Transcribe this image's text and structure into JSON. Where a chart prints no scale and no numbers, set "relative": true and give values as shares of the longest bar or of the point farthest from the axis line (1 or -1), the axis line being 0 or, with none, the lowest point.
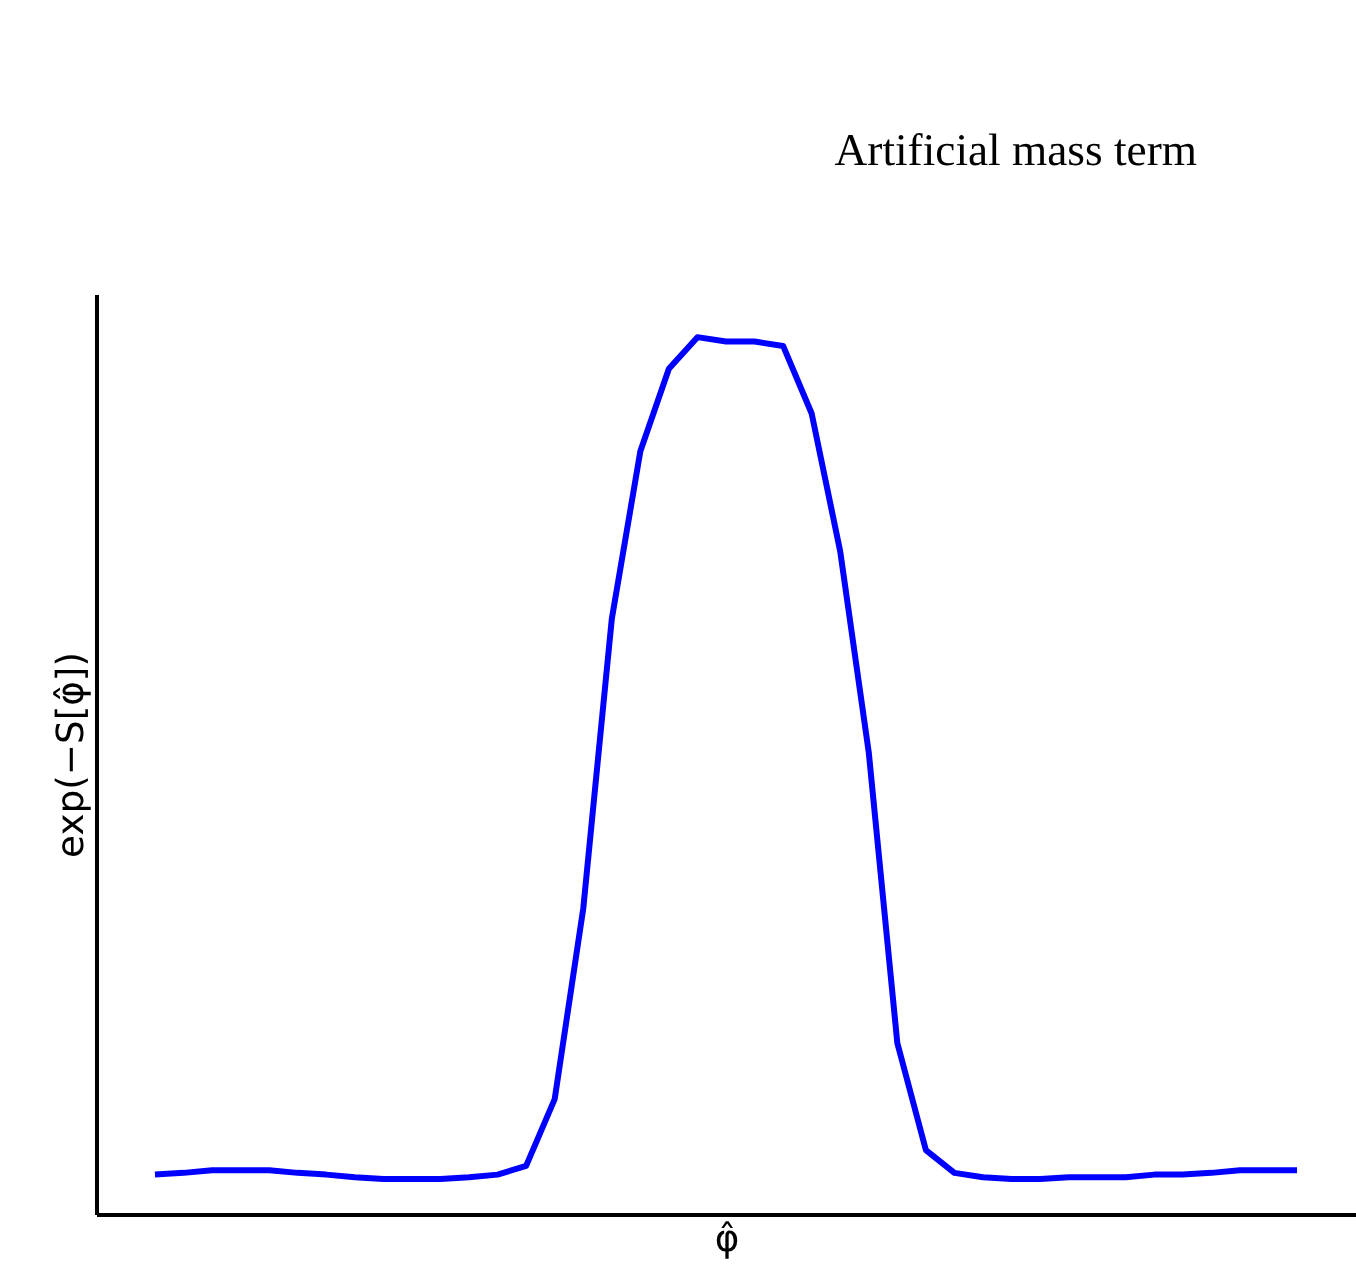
{
  "chart_data": {
    "type": "line",
    "title": "Artificial mass term",
    "xlabel": "φ̂",
    "ylabel": "exp(−S[φ̂])",
    "relative": true,
    "categories": [
      null,
      null,
      null,
      null,
      null,
      null,
      null,
      null,
      null,
      null,
      null,
      null,
      null,
      null,
      null,
      null,
      null,
      null,
      null,
      null,
      null,
      null,
      null,
      null,
      null,
      null,
      null,
      null,
      null,
      null,
      null,
      null,
      null,
      null,
      null,
      null,
      null,
      null,
      null,
      null,
      null
    ],
    "series": [
      {
        "color": "#0000ff",
        "values": [
          0.046,
          0.048,
          0.051,
          0.051,
          0.051,
          0.048,
          0.046,
          0.043,
          0.041,
          0.041,
          0.041,
          0.043,
          0.046,
          0.056,
          0.132,
          0.349,
          0.679,
          0.87,
          0.964,
          1.0,
          0.995,
          0.995,
          0.99,
          0.913,
          0.756,
          0.527,
          0.196,
          0.074,
          0.048,
          0.043,
          0.041,
          0.041,
          0.043,
          0.043,
          0.043,
          0.046,
          0.046,
          0.048,
          0.051,
          0.051,
          0.051
        ]
      }
    ]
  }
}
